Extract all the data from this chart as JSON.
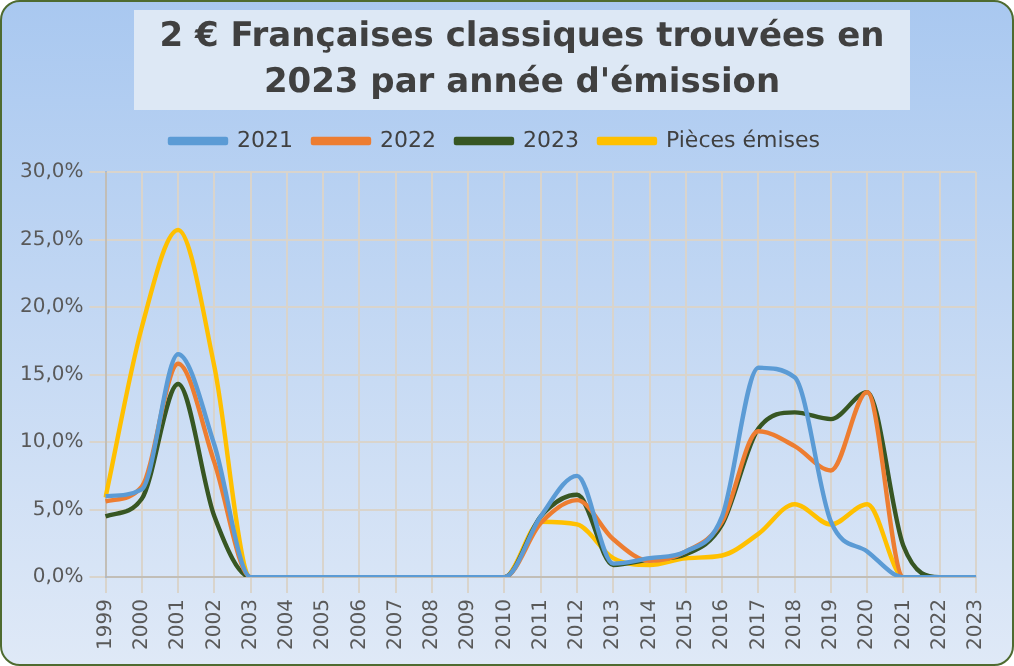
{
  "chart_data": {
    "type": "line",
    "title": "2 €  Françaises classiques trouvées en 2023   par année d'émission",
    "categories": [
      "1999",
      "2000",
      "2001",
      "2002",
      "2003",
      "2004",
      "2005",
      "2006",
      "2007",
      "2008",
      "2009",
      "2010",
      "2011",
      "2012",
      "2013",
      "2014",
      "2015",
      "2016",
      "2017",
      "2018",
      "2019",
      "2020",
      "2021",
      "2022",
      "2023"
    ],
    "series": [
      {
        "name": "2021",
        "color": "#5b9bd5",
        "values": [
          6.0,
          6.5,
          16.5,
          9.8,
          0,
          0,
          0,
          0,
          0,
          0,
          0,
          0,
          4.5,
          7.5,
          1.0,
          1.4,
          1.9,
          4.5,
          15.5,
          14.8,
          4.1,
          1.9,
          0,
          0,
          0
        ]
      },
      {
        "name": "2022",
        "color": "#ed7d31",
        "values": [
          5.6,
          6.7,
          15.8,
          8.5,
          0,
          0,
          0,
          0,
          0,
          0,
          0,
          0,
          4.0,
          5.7,
          2.8,
          1.2,
          1.9,
          4.1,
          10.8,
          9.7,
          7.9,
          13.7,
          0,
          0,
          0
        ]
      },
      {
        "name": "2023",
        "color": "#375623",
        "values": [
          4.5,
          5.8,
          14.3,
          4.5,
          0,
          0,
          0,
          0,
          0,
          0,
          0,
          0,
          4.5,
          6.1,
          0.9,
          1.3,
          1.7,
          3.9,
          11.0,
          12.2,
          11.7,
          13.7,
          2.3,
          0,
          0
        ]
      },
      {
        "name": "Pièces émises",
        "color": "#ffc000",
        "values": [
          5.9,
          18.5,
          25.7,
          15.6,
          0,
          0,
          0,
          0,
          0,
          0,
          0,
          0,
          4.1,
          3.9,
          1.4,
          0.9,
          1.4,
          1.6,
          3.2,
          5.4,
          3.9,
          5.4,
          0,
          0,
          0
        ]
      }
    ],
    "ylim": [
      0,
      30
    ],
    "yticks": [
      {
        "value": 0,
        "label": "0,0%"
      },
      {
        "value": 5,
        "label": "5,0%"
      },
      {
        "value": 10,
        "label": "10,0%"
      },
      {
        "value": 15,
        "label": "15,0%"
      },
      {
        "value": 20,
        "label": "20,0%"
      },
      {
        "value": 25,
        "label": "25,0%"
      },
      {
        "value": 30,
        "label": "30,0%"
      }
    ],
    "grid": true,
    "legend": "top",
    "marker": "none",
    "line_style": "solid"
  }
}
